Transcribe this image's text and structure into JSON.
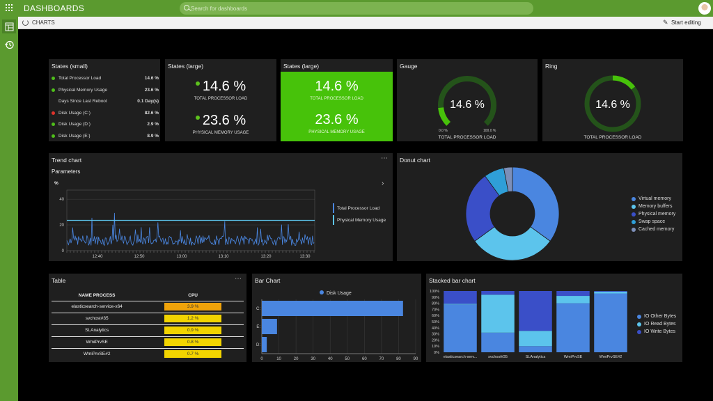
{
  "app": {
    "title": "DASHBOARDS",
    "search_placeholder": "Search for dashboards",
    "breadcrumb": "CHARTS",
    "edit_label": "Start editing",
    "brand_color": "#5b9a2f"
  },
  "states_small": {
    "title": "States (small)",
    "rows": [
      {
        "label": "Total Processor Load",
        "value": "14.6 %",
        "status": "green"
      },
      {
        "label": "Physical Memory Usage",
        "value": "23.6 %",
        "status": "green"
      },
      {
        "label": "Days Since Last Reboot",
        "value": "0.1 Day(s)",
        "status": "none"
      },
      {
        "label": "Disk Usage (C:)",
        "value": "82.6 %",
        "status": "red"
      },
      {
        "label": "Disk Usage (D:)",
        "value": "2.9 %",
        "status": "green"
      },
      {
        "label": "Disk Usage (E:)",
        "value": "8.9 %",
        "status": "green"
      }
    ]
  },
  "states_large": {
    "title": "States (large)",
    "items": [
      {
        "value": "14.6 %",
        "caption": "TOTAL PROCESSOR LOAD"
      },
      {
        "value": "23.6 %",
        "caption": "PHYSICAL MEMORY USAGE"
      }
    ]
  },
  "states_large_green": {
    "title": "States (large)",
    "items": [
      {
        "value": "14.6 %",
        "caption": "TOTAL PROCESSOR LOAD"
      },
      {
        "value": "23.6 %",
        "caption": "PHYSICAL MEMORY USAGE"
      }
    ]
  },
  "gauge": {
    "title": "Gauge",
    "value": "14.6 %",
    "fraction": 0.146,
    "min": "0.0 %",
    "max": "100.0 %",
    "caption": "TOTAL PROCESSOR LOAD"
  },
  "ring": {
    "title": "Ring",
    "value": "14.6 %",
    "fraction": 0.146,
    "caption": "TOTAL PROCESSOR LOAD"
  },
  "trend": {
    "title": "Trend chart",
    "subtitle": "Parameters",
    "unit": "%",
    "legend": [
      "Total Processor Load",
      "Physical Memory Usage"
    ],
    "yticks": [
      "40",
      "20",
      "0"
    ],
    "xticks": [
      "12:40",
      "12:50",
      "13:00",
      "13:10",
      "13:20",
      "13:30"
    ]
  },
  "donut": {
    "title": "Donut chart",
    "legend": [
      {
        "label": "Virtual memory",
        "color": "#4a86e0"
      },
      {
        "label": "Memory buffers",
        "color": "#5cc4ec"
      },
      {
        "label": "Physical memory",
        "color": "#3a4fc8"
      },
      {
        "label": "Swap space",
        "color": "#2f9fd8"
      },
      {
        "label": "Cached memory",
        "color": "#7d8fb8"
      }
    ]
  },
  "table": {
    "title": "Table",
    "headers": [
      "NAME PROCESS",
      "CPU"
    ],
    "rows": [
      {
        "name": "elasticsearch-service-x64",
        "cpu": "3.9 %",
        "color": "#f0a30a"
      },
      {
        "name": "svchost#35",
        "cpu": "1.2 %",
        "color": "#f2d400"
      },
      {
        "name": "SLAnalytics",
        "cpu": "0.9 %",
        "color": "#f2d400"
      },
      {
        "name": "WmiPrvSE",
        "cpu": "0.8 %",
        "color": "#f2d400"
      },
      {
        "name": "WmiPrvSE#2",
        "cpu": "0.7 %",
        "color": "#f2d400"
      }
    ]
  },
  "bar_chart": {
    "title": "Bar Chart",
    "legend": "Disk Usage"
  },
  "stacked": {
    "title": "Stacked bar chart",
    "legend": [
      {
        "label": "IO Other Bytes",
        "color": "#4a86e0"
      },
      {
        "label": "IO Read Bytes",
        "color": "#5cc4ec"
      },
      {
        "label": "IO Write Bytes",
        "color": "#3a4fc8"
      }
    ]
  },
  "chart_data": [
    {
      "type": "pie",
      "title": "Donut chart",
      "categories": [
        "Virtual memory",
        "Memory buffers",
        "Physical memory",
        "Swap space",
        "Cached memory"
      ],
      "values": [
        35,
        30,
        25,
        7,
        3
      ]
    },
    {
      "type": "bar",
      "title": "Bar Chart",
      "orientation": "horizontal",
      "categories": [
        "C:",
        "E:",
        "D:"
      ],
      "series": [
        {
          "name": "Disk Usage",
          "values": [
            82.6,
            8.9,
            2.9
          ]
        }
      ],
      "xticks": [
        0,
        10,
        20,
        30,
        40,
        50,
        60,
        70,
        80,
        90
      ],
      "xlim": [
        0,
        90
      ]
    },
    {
      "type": "bar",
      "stacked": true,
      "title": "Stacked bar chart",
      "categories": [
        "elasticsearch-serv...",
        "svchost#35",
        "SLAnalytics",
        "WmiPrvSE",
        "WmiPrvSE#2"
      ],
      "yticks": [
        "0%",
        "10%",
        "20%",
        "30%",
        "40%",
        "50%",
        "60%",
        "70%",
        "80%",
        "90%",
        "100%"
      ],
      "ylim": [
        0,
        100
      ],
      "series": [
        {
          "name": "IO Other Bytes",
          "values": [
            78,
            32,
            10,
            80,
            96
          ]
        },
        {
          "name": "IO Read Bytes",
          "values": [
            1,
            62,
            25,
            12,
            3
          ]
        },
        {
          "name": "IO Write Bytes",
          "values": [
            21,
            6,
            65,
            8,
            1
          ]
        }
      ]
    },
    {
      "type": "line",
      "title": "Trend chart",
      "ylim": [
        0,
        45
      ],
      "series": [
        {
          "name": "Total Processor Load",
          "level": 8
        },
        {
          "name": "Physical Memory Usage",
          "level": 23.6
        }
      ]
    }
  ]
}
